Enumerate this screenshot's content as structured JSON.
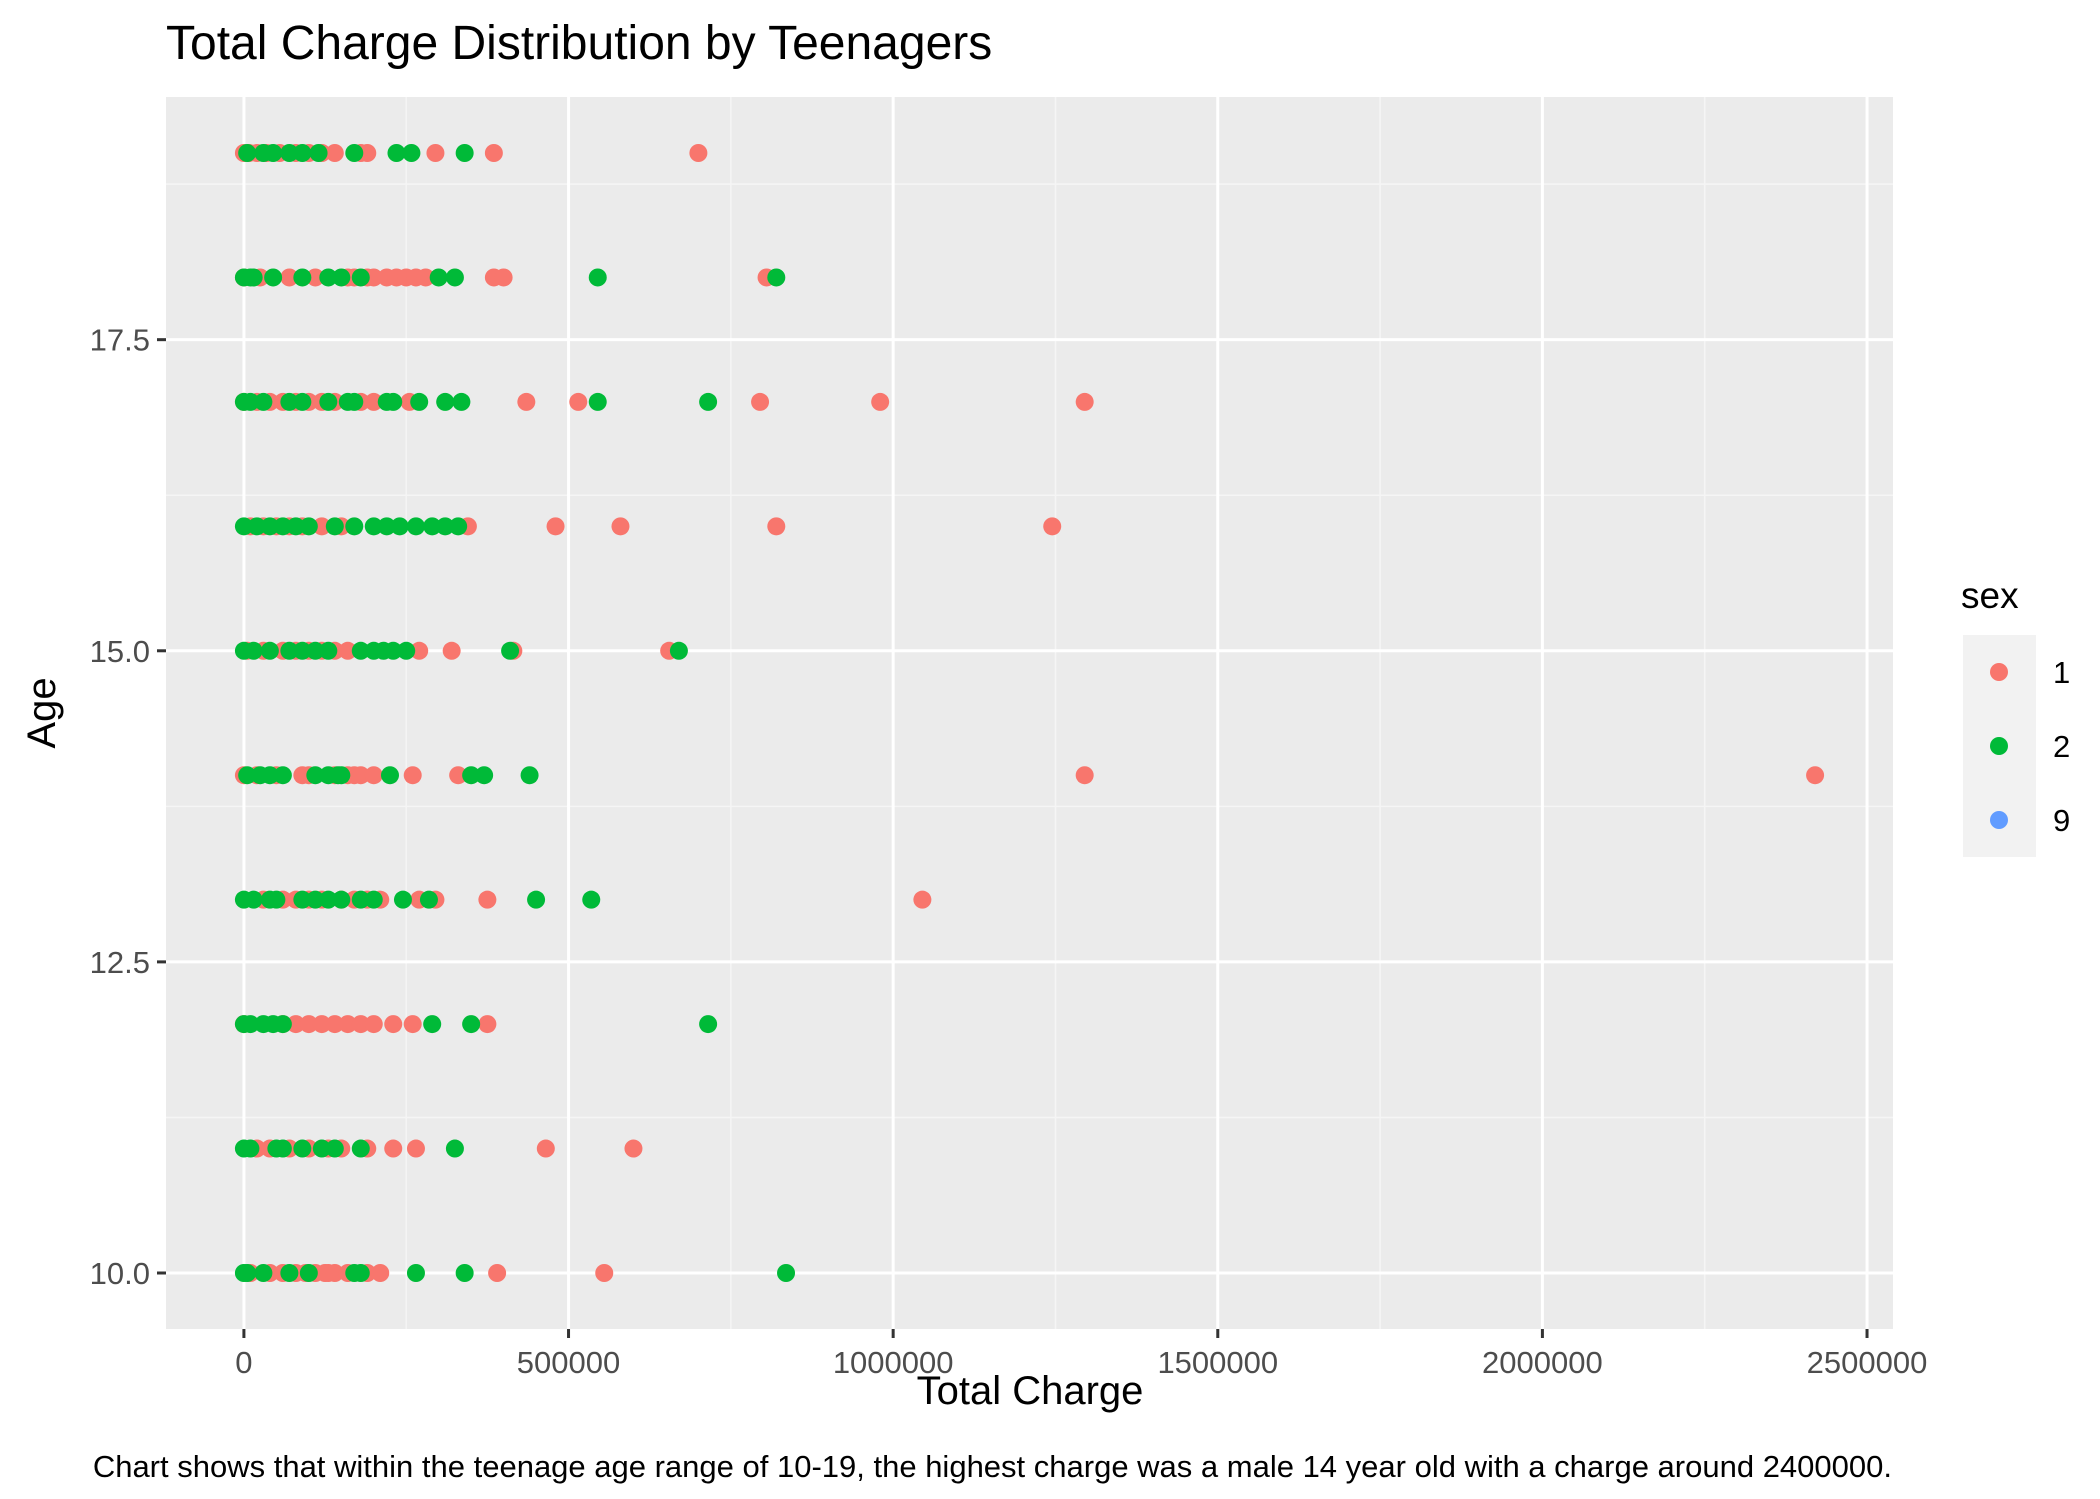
{
  "chart_data": {
    "type": "scatter",
    "title": "Total Charge Distribution by Teenagers",
    "xlabel": "Total Charge",
    "ylabel": "Age",
    "caption": "Chart shows that within the teenage age range of 10-19, the highest charge was a male 14 year old with a charge around 2400000.",
    "xlim": [
      -120000,
      2540000
    ],
    "ylim": [
      9.55,
      19.45
    ],
    "x_ticks": [
      0,
      500000,
      1000000,
      1500000,
      2000000,
      2500000
    ],
    "x_tick_labels": [
      "0",
      "500000",
      "1000000",
      "1500000",
      "2000000",
      "2500000"
    ],
    "y_ticks": [
      10,
      12.5,
      15,
      17.5
    ],
    "y_tick_labels": [
      "10.0",
      "12.5",
      "15.0",
      "17.5"
    ],
    "grid": true,
    "legend": {
      "title": "sex",
      "position": "right",
      "entries": [
        {
          "label": "1",
          "color": "#F8766D"
        },
        {
          "label": "2",
          "color": "#00BA38"
        },
        {
          "label": "9",
          "color": "#619CFF"
        }
      ]
    },
    "series": [
      {
        "name": "1",
        "color": "#F8766D",
        "points": [
          [
            0,
            19
          ],
          [
            8000,
            19
          ],
          [
            20000,
            19
          ],
          [
            35000,
            19
          ],
          [
            55000,
            19
          ],
          [
            80000,
            19
          ],
          [
            100000,
            19
          ],
          [
            120000,
            19
          ],
          [
            140000,
            19
          ],
          [
            180000,
            19
          ],
          [
            190000,
            19
          ],
          [
            295000,
            19
          ],
          [
            385000,
            19
          ],
          [
            700000,
            19
          ],
          [
            0,
            18
          ],
          [
            25000,
            18
          ],
          [
            70000,
            18
          ],
          [
            110000,
            18
          ],
          [
            160000,
            18
          ],
          [
            170000,
            18
          ],
          [
            190000,
            18
          ],
          [
            200000,
            18
          ],
          [
            220000,
            18
          ],
          [
            235000,
            18
          ],
          [
            250000,
            18
          ],
          [
            265000,
            18
          ],
          [
            280000,
            18
          ],
          [
            385000,
            18
          ],
          [
            400000,
            18
          ],
          [
            805000,
            18
          ],
          [
            0,
            17
          ],
          [
            20000,
            17
          ],
          [
            40000,
            17
          ],
          [
            60000,
            17
          ],
          [
            80000,
            17
          ],
          [
            100000,
            17
          ],
          [
            120000,
            17
          ],
          [
            140000,
            17
          ],
          [
            180000,
            17
          ],
          [
            200000,
            17
          ],
          [
            255000,
            17
          ],
          [
            435000,
            17
          ],
          [
            515000,
            17
          ],
          [
            795000,
            17
          ],
          [
            980000,
            17
          ],
          [
            1295000,
            17
          ],
          [
            10000,
            16
          ],
          [
            30000,
            16
          ],
          [
            50000,
            16
          ],
          [
            70000,
            16
          ],
          [
            90000,
            16
          ],
          [
            120000,
            16
          ],
          [
            150000,
            16
          ],
          [
            345000,
            16
          ],
          [
            480000,
            16
          ],
          [
            580000,
            16
          ],
          [
            820000,
            16
          ],
          [
            1245000,
            16
          ],
          [
            5000,
            15
          ],
          [
            30000,
            15
          ],
          [
            60000,
            15
          ],
          [
            80000,
            15
          ],
          [
            100000,
            15
          ],
          [
            120000,
            15
          ],
          [
            140000,
            15
          ],
          [
            160000,
            15
          ],
          [
            270000,
            15
          ],
          [
            320000,
            15
          ],
          [
            415000,
            15
          ],
          [
            655000,
            15
          ],
          [
            0,
            14
          ],
          [
            20000,
            14
          ],
          [
            50000,
            14
          ],
          [
            90000,
            14
          ],
          [
            100000,
            14
          ],
          [
            140000,
            14
          ],
          [
            160000,
            14
          ],
          [
            170000,
            14
          ],
          [
            180000,
            14
          ],
          [
            200000,
            14
          ],
          [
            260000,
            14
          ],
          [
            330000,
            14
          ],
          [
            1295000,
            14
          ],
          [
            2420000,
            14
          ],
          [
            30000,
            13
          ],
          [
            60000,
            13
          ],
          [
            80000,
            13
          ],
          [
            100000,
            13
          ],
          [
            120000,
            13
          ],
          [
            150000,
            13
          ],
          [
            170000,
            13
          ],
          [
            190000,
            13
          ],
          [
            210000,
            13
          ],
          [
            270000,
            13
          ],
          [
            295000,
            13
          ],
          [
            375000,
            13
          ],
          [
            1045000,
            13
          ],
          [
            0,
            12
          ],
          [
            60000,
            12
          ],
          [
            80000,
            12
          ],
          [
            100000,
            12
          ],
          [
            120000,
            12
          ],
          [
            140000,
            12
          ],
          [
            160000,
            12
          ],
          [
            180000,
            12
          ],
          [
            200000,
            12
          ],
          [
            230000,
            12
          ],
          [
            260000,
            12
          ],
          [
            375000,
            12
          ],
          [
            20000,
            11
          ],
          [
            40000,
            11
          ],
          [
            70000,
            11
          ],
          [
            100000,
            11
          ],
          [
            130000,
            11
          ],
          [
            150000,
            11
          ],
          [
            190000,
            11
          ],
          [
            230000,
            11
          ],
          [
            265000,
            11
          ],
          [
            465000,
            11
          ],
          [
            600000,
            11
          ],
          [
            10000,
            10
          ],
          [
            40000,
            10
          ],
          [
            60000,
            10
          ],
          [
            80000,
            10
          ],
          [
            95000,
            10
          ],
          [
            110000,
            10
          ],
          [
            125000,
            10
          ],
          [
            130000,
            10
          ],
          [
            140000,
            10
          ],
          [
            160000,
            10
          ],
          [
            190000,
            10
          ],
          [
            210000,
            10
          ],
          [
            390000,
            10
          ],
          [
            555000,
            10
          ]
        ]
      },
      {
        "name": "2",
        "color": "#00BA38",
        "points": [
          [
            5000,
            19
          ],
          [
            30000,
            19
          ],
          [
            45000,
            19
          ],
          [
            70000,
            19
          ],
          [
            90000,
            19
          ],
          [
            115000,
            19
          ],
          [
            170000,
            19
          ],
          [
            235000,
            19
          ],
          [
            258000,
            19
          ],
          [
            340000,
            19
          ],
          [
            0,
            18
          ],
          [
            10000,
            18
          ],
          [
            15000,
            18
          ],
          [
            45000,
            18
          ],
          [
            90000,
            18
          ],
          [
            130000,
            18
          ],
          [
            150000,
            18
          ],
          [
            180000,
            18
          ],
          [
            300000,
            18
          ],
          [
            325000,
            18
          ],
          [
            545000,
            18
          ],
          [
            820000,
            18
          ],
          [
            0,
            17
          ],
          [
            10000,
            17
          ],
          [
            30000,
            17
          ],
          [
            70000,
            17
          ],
          [
            90000,
            17
          ],
          [
            130000,
            17
          ],
          [
            160000,
            17
          ],
          [
            170000,
            17
          ],
          [
            220000,
            17
          ],
          [
            230000,
            17
          ],
          [
            270000,
            17
          ],
          [
            310000,
            17
          ],
          [
            335000,
            17
          ],
          [
            545000,
            17
          ],
          [
            715000,
            17
          ],
          [
            0,
            16
          ],
          [
            20000,
            16
          ],
          [
            40000,
            16
          ],
          [
            60000,
            16
          ],
          [
            80000,
            16
          ],
          [
            100000,
            16
          ],
          [
            140000,
            16
          ],
          [
            170000,
            16
          ],
          [
            200000,
            16
          ],
          [
            220000,
            16
          ],
          [
            240000,
            16
          ],
          [
            265000,
            16
          ],
          [
            290000,
            16
          ],
          [
            310000,
            16
          ],
          [
            330000,
            16
          ],
          [
            0,
            15
          ],
          [
            15000,
            15
          ],
          [
            40000,
            15
          ],
          [
            70000,
            15
          ],
          [
            90000,
            15
          ],
          [
            110000,
            15
          ],
          [
            130000,
            15
          ],
          [
            180000,
            15
          ],
          [
            200000,
            15
          ],
          [
            215000,
            15
          ],
          [
            230000,
            15
          ],
          [
            250000,
            15
          ],
          [
            410000,
            15
          ],
          [
            670000,
            15
          ],
          [
            5000,
            14
          ],
          [
            25000,
            14
          ],
          [
            40000,
            14
          ],
          [
            60000,
            14
          ],
          [
            110000,
            14
          ],
          [
            130000,
            14
          ],
          [
            145000,
            14
          ],
          [
            150000,
            14
          ],
          [
            225000,
            14
          ],
          [
            350000,
            14
          ],
          [
            370000,
            14
          ],
          [
            440000,
            14
          ],
          [
            0,
            13
          ],
          [
            15000,
            13
          ],
          [
            40000,
            13
          ],
          [
            50000,
            13
          ],
          [
            90000,
            13
          ],
          [
            110000,
            13
          ],
          [
            130000,
            13
          ],
          [
            150000,
            13
          ],
          [
            180000,
            13
          ],
          [
            200000,
            13
          ],
          [
            245000,
            13
          ],
          [
            285000,
            13
          ],
          [
            450000,
            13
          ],
          [
            535000,
            13
          ],
          [
            0,
            12
          ],
          [
            10000,
            12
          ],
          [
            30000,
            12
          ],
          [
            45000,
            12
          ],
          [
            60000,
            12
          ],
          [
            290000,
            12
          ],
          [
            350000,
            12
          ],
          [
            715000,
            12
          ],
          [
            0,
            11
          ],
          [
            10000,
            11
          ],
          [
            50000,
            11
          ],
          [
            60000,
            11
          ],
          [
            90000,
            11
          ],
          [
            120000,
            11
          ],
          [
            140000,
            11
          ],
          [
            180000,
            11
          ],
          [
            325000,
            11
          ],
          [
            0,
            10
          ],
          [
            5000,
            10
          ],
          [
            30000,
            10
          ],
          [
            70000,
            10
          ],
          [
            100000,
            10
          ],
          [
            170000,
            10
          ],
          [
            180000,
            10
          ],
          [
            265000,
            10
          ],
          [
            340000,
            10
          ],
          [
            835000,
            10
          ]
        ]
      },
      {
        "name": "9",
        "color": "#619CFF",
        "points": []
      }
    ]
  }
}
